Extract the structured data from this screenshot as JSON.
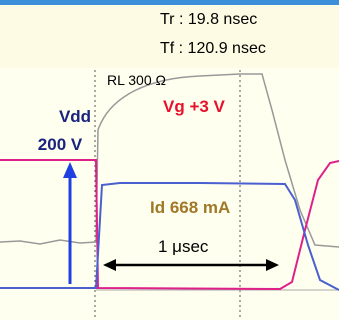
{
  "header": {
    "rise_time": "Tr :  19.8 nsec",
    "fall_time": "Tf : 120.9 nsec"
  },
  "labels": {
    "load": "RL 300 Ω",
    "supply_name": "Vdd",
    "supply_value": "200 V",
    "gate": "Vg +3 V",
    "drain_current": "Id 668 mA",
    "time_span": "1 μsec"
  }
}
